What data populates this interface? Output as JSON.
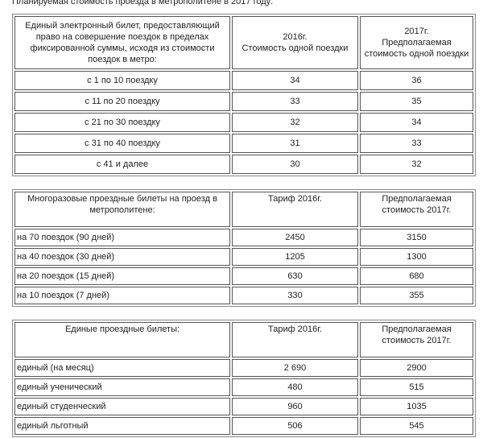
{
  "intro": "Планируемая стоимость проезда в метрополитене в 2017 году:",
  "tables": [
    {
      "headers": [
        "Единый электронный билет, предоставляющий право на совершение поездок в пределах фиксированной суммы, исходя из стоимости поездок в метро:",
        "2016г.\nСтоимость одной поездки",
        "2017г.\nПредполагаемая стоимость одной поездки"
      ],
      "rows": [
        [
          "с 1 по 10 поездку",
          "34",
          "36"
        ],
        [
          "с 11 по 20 поездку",
          "33",
          "35"
        ],
        [
          "с 21 по 30 поездку",
          "32",
          "34"
        ],
        [
          "с 31 по 40 поездку",
          "31",
          "33"
        ],
        [
          "с 41 и далее",
          "30",
          "32"
        ]
      ]
    },
    {
      "headers": [
        "Многоразовые проездные билеты на проезд в метрополитене:",
        "Тариф 2016г.",
        "Предполагаемая стоимость 2017г."
      ],
      "rows": [
        [
          "на 70 поездок (90 дней)",
          "2450",
          "3150"
        ],
        [
          "на 40 поездок (30 дней)",
          "1205",
          "1300"
        ],
        [
          "на 20 поездок (15 дней)",
          "630",
          "680"
        ],
        [
          "на 10 поездок (7 дней)",
          "330",
          "355"
        ]
      ]
    },
    {
      "headers": [
        "Единые проездные билеты:",
        "Тариф 2016г.",
        "Предполагаемая стоимость 2017г."
      ],
      "rows": [
        [
          "единый (на месяц)",
          "2 690",
          "2900"
        ],
        [
          "единый ученический",
          "480",
          "515"
        ],
        [
          "единый студенческий",
          "960",
          "1035"
        ],
        [
          "единый льготный",
          "506",
          "545"
        ]
      ]
    }
  ]
}
